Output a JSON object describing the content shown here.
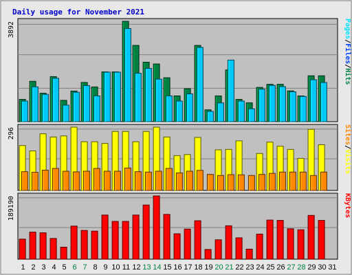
{
  "chart_data": {
    "type": "bar",
    "title": "Daily usage for November 2021",
    "categories": [
      "1",
      "2",
      "3",
      "4",
      "5",
      "6",
      "7",
      "8",
      "9",
      "10",
      "11",
      "12",
      "13",
      "14",
      "15",
      "16",
      "17",
      "18",
      "19",
      "20",
      "21",
      "22",
      "23",
      "24",
      "25",
      "26",
      "27",
      "28",
      "29",
      "30",
      "31"
    ],
    "weekend_days": [
      "6",
      "7",
      "13",
      "14",
      "20",
      "21",
      "27",
      "28"
    ],
    "legend_position": "right",
    "grid": true,
    "colors": {
      "hits": "#008040",
      "files": "#00c8f8",
      "pages": "#00e0ff",
      "visits": "#ffff00",
      "sites": "#ff8800",
      "kbytes": "#ff0000",
      "title": "#0000cc",
      "weekend": "#008040",
      "panel": "#c0c0c0",
      "background": "#e8e8e8"
    },
    "panels": [
      {
        "name": "hits-files-pages",
        "scale_label": "3892",
        "ymax": 3892,
        "legend": [
          {
            "text": "Pages",
            "color": "#00e0ff"
          },
          {
            "text": "/",
            "color": "#000000"
          },
          {
            "text": "Files",
            "color": "#0040ff"
          },
          {
            "text": "/",
            "color": "#000000"
          },
          {
            "text": "Hits",
            "color": "#008040"
          }
        ],
        "series": [
          {
            "name": "Hits",
            "color": "#008040",
            "values": [
              866,
              1566,
              1104,
              1748,
              828,
              1188,
              1522,
              1348,
              1932,
              1932,
              3892,
              2958,
              2307,
              2238,
              1705,
              1000,
              1279,
              2958,
              460,
              1000,
              2007,
              866,
              732,
              1330,
              1450,
              1450,
              1195,
              1000,
              1780,
              1780,
              0
            ]
          },
          {
            "name": "Files",
            "color": "#00c8f8",
            "values": [
              800,
              1350,
              1060,
              1685,
              640,
              1140,
              1400,
              1000,
              1920,
              1920,
              3612,
              1880,
              2067,
              1650,
              1000,
              800,
              1080,
              2880,
              400,
              730,
              2390,
              800,
              500,
              1260,
              1406,
              1360,
              1160,
              980,
              1626,
              1520,
              0
            ]
          }
        ]
      },
      {
        "name": "visits-sites",
        "scale_label": "296",
        "ymax": 296,
        "legend": [
          {
            "text": "Sites",
            "color": "#ff8800"
          },
          {
            "text": "/",
            "color": "#000000"
          },
          {
            "text": "Visits",
            "color": "#ffff00"
          }
        ],
        "series": [
          {
            "name": "Visits",
            "color": "#ffff00",
            "values": [
              210,
              185,
              265,
              250,
              255,
              296,
              228,
              228,
              220,
              276,
              276,
              228,
              276,
              296,
              250,
              163,
              168,
              248,
              0,
              190,
              192,
              232,
              0,
              173,
              226,
              207,
              192,
              150,
              286,
              214,
              0
            ]
          },
          {
            "name": "Sites",
            "color": "#ff8800",
            "values": [
              88,
              85,
              95,
              103,
              90,
              87,
              90,
              103,
              90,
              90,
              105,
              88,
              86,
              90,
              103,
              82,
              90,
              94,
              75,
              70,
              74,
              73,
              70,
              75,
              80,
              86,
              86,
              86,
              70,
              86,
              0
            ]
          }
        ]
      },
      {
        "name": "kbytes",
        "scale_label": "189190",
        "ymax": 189190,
        "legend": [
          {
            "text": "KBytes",
            "color": "#ff0000"
          }
        ],
        "series": [
          {
            "name": "KBytes",
            "color": "#ff0000",
            "values": [
              60000,
              81000,
              79000,
              62000,
              36000,
              99000,
              86000,
              84000,
              132000,
              113000,
              113000,
              132000,
              162000,
              189190,
              134000,
              76000,
              90000,
              115000,
              29000,
              58000,
              100000,
              64000,
              30000,
              75000,
              117000,
              116000,
              91000,
              88000,
              131000,
              116000,
              0
            ]
          }
        ]
      }
    ]
  }
}
